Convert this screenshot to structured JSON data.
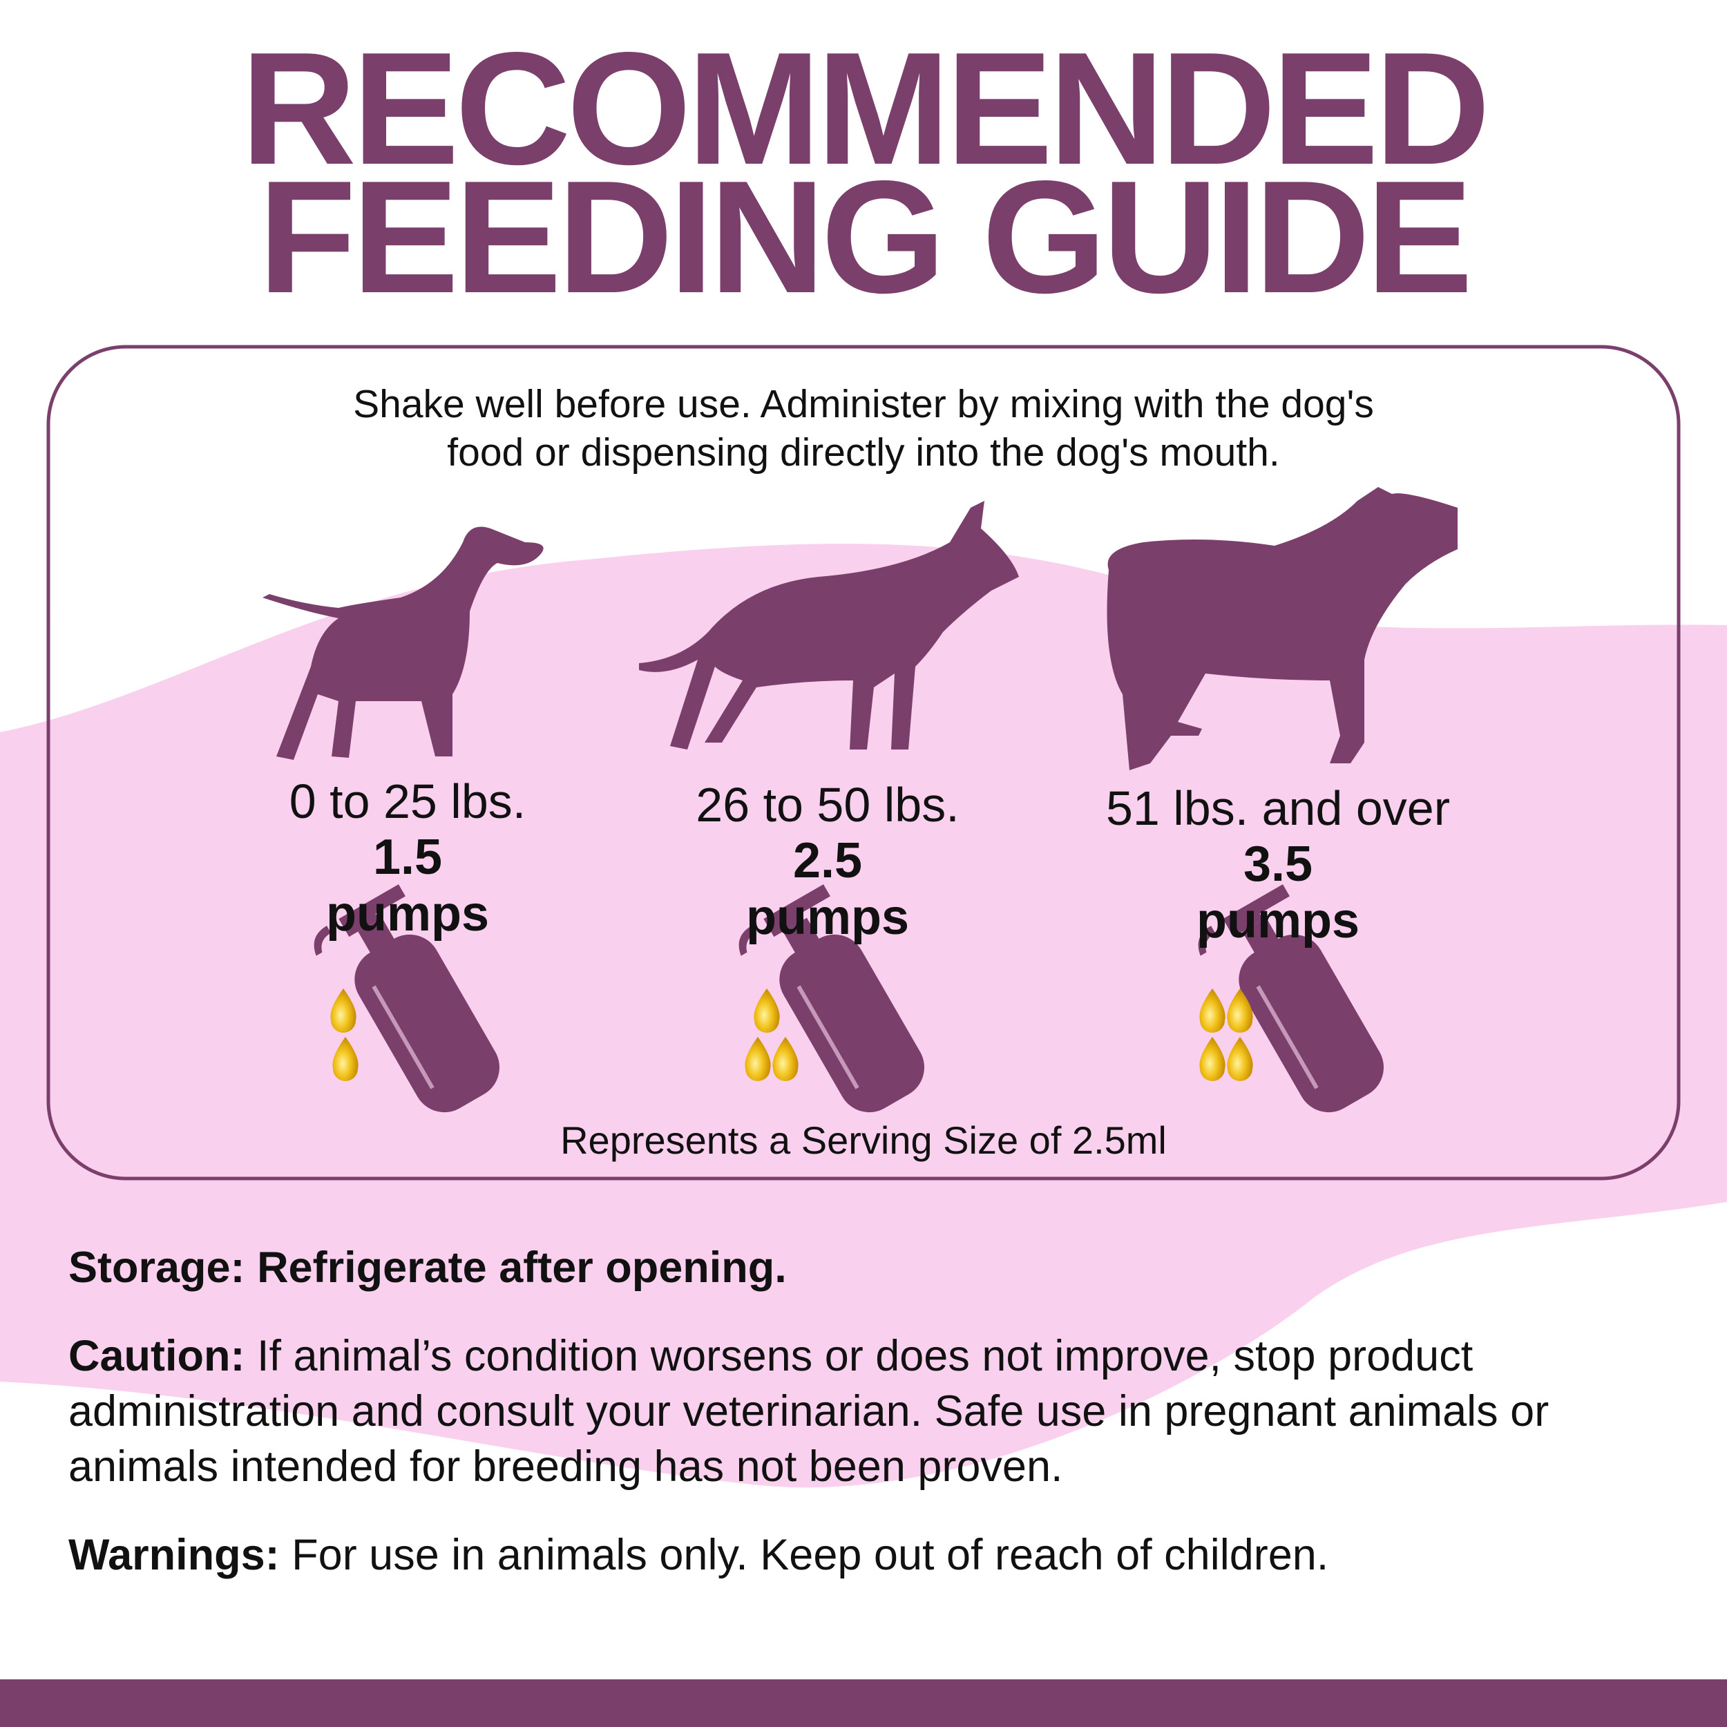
{
  "header": {
    "title": [
      "RECOMMENDED",
      "FEEDING GUIDE"
    ]
  },
  "guide": {
    "intro": "Shake well before use. Administer by mixing with the dog's food or dispensing directly into the dog's mouth.",
    "tiers": [
      {
        "weight": "0 to 25 lbs.",
        "amount": 1.5,
        "unit": "pumps"
      },
      {
        "weight": "26 to 50 lbs.",
        "amount": 2.5,
        "unit": "pumps"
      },
      {
        "weight": "51 lbs. and over",
        "amount": 3.5,
        "unit": "pumps"
      }
    ],
    "serving": "Represents a Serving Size of 2.5ml"
  },
  "notes": [
    {
      "label": "Storage:",
      "text": "Refrigerate after opening."
    },
    {
      "label": "Caution:",
      "text": "If animal’s condition worsens or does not improve, stop product administration and consult your veterinarian. Safe use in pregnant animals or animals intended for breeding has not been proven."
    },
    {
      "label": "Warnings:",
      "text": "For use in animals only. Keep out of reach of children."
    }
  ]
}
